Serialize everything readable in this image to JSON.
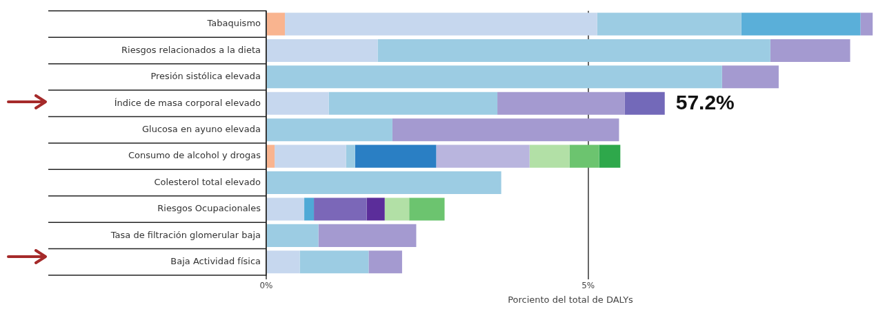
{
  "chart_data": {
    "type": "bar",
    "orientation": "horizontal",
    "stacked": true,
    "xlabel": "Porciento del total de DALYs",
    "categories": [
      "Tabaquismo",
      "Riesgos relacionados a la dieta",
      "Presión sistólica elevada",
      "Índice de masa corporal elevado",
      "Glucosa en ayuno elevada",
      "Consumo de alcohol y drogas",
      "Colesterol total elevado",
      "Riesgos Ocupacionales",
      "Tasa de filtración glomerular baja",
      "Baja Actividad física"
    ],
    "series": [
      {
        "values": [
          0.29,
          1.73,
          7.08,
          0.97,
          1.96,
          0.13,
          3.65,
          0.59,
          0.81,
          0.52
        ],
        "colors": [
          "#f9b48f",
          "#c6d7ee",
          "#9ccce3",
          "#c6d7ee",
          "#9ccce3",
          "#f9b48f",
          "#9ccce3",
          "#c6d7ee",
          "#9ccce3",
          "#c6d7ee"
        ]
      },
      {
        "values": [
          4.85,
          6.1,
          0.88,
          2.62,
          3.52,
          1.11,
          null,
          0.15,
          1.52,
          1.07
        ],
        "colors": [
          "#c6d7ee",
          "#9ccce3",
          "#a49ad0",
          "#9ccce3",
          "#a49ad0",
          "#c6d7ee",
          null,
          "#4fa9d6",
          "#a49ad0",
          "#9ccce3"
        ]
      },
      {
        "values": [
          2.24,
          1.24,
          null,
          1.98,
          null,
          0.14,
          null,
          0.82,
          null,
          0.52
        ],
        "colors": [
          "#9ccce3",
          "#a49ad0",
          null,
          "#a49ad0",
          null,
          "#9ccce3",
          null,
          "#7b67b8",
          null,
          "#a49ad0"
        ]
      },
      {
        "values": [
          1.85,
          null,
          null,
          0.62,
          null,
          1.26,
          null,
          0.28,
          null,
          null
        ],
        "colors": [
          "#5aafd9",
          null,
          null,
          "#7369b9",
          null,
          "#2a7fc4",
          null,
          "#5b2d9a",
          null,
          null
        ]
      },
      {
        "values": [
          0.19,
          null,
          null,
          null,
          null,
          1.45,
          null,
          0.38,
          null,
          null
        ],
        "colors": [
          "#a49ad0",
          null,
          null,
          null,
          null,
          "#b9b5de",
          null,
          "#b2e0a6",
          null,
          null
        ]
      },
      {
        "values": [
          null,
          null,
          null,
          null,
          null,
          0.62,
          null,
          0.55,
          null,
          null
        ],
        "colors": [
          null,
          null,
          null,
          null,
          null,
          "#b2e0a6",
          null,
          "#6cc46f",
          null,
          null
        ]
      },
      {
        "values": [
          null,
          null,
          null,
          null,
          null,
          0.46,
          null,
          null,
          null,
          null
        ],
        "colors": [
          null,
          null,
          null,
          null,
          null,
          "#6cc46f",
          null,
          null,
          null,
          null
        ]
      },
      {
        "values": [
          null,
          null,
          null,
          null,
          null,
          0.33,
          null,
          null,
          null,
          null
        ],
        "colors": [
          null,
          null,
          null,
          null,
          null,
          "#2ea84b",
          null,
          null,
          null,
          null
        ]
      }
    ],
    "xlim": [
      0,
      9.45
    ],
    "xticks": [
      {
        "value": 0,
        "label": "0%"
      },
      {
        "value": 5,
        "label": "5%"
      }
    ],
    "grid": "x",
    "legend": false,
    "annotations": [
      {
        "text": "57.2%",
        "x": 6.19,
        "y": "Índice de masa corporal elevado"
      }
    ]
  }
}
